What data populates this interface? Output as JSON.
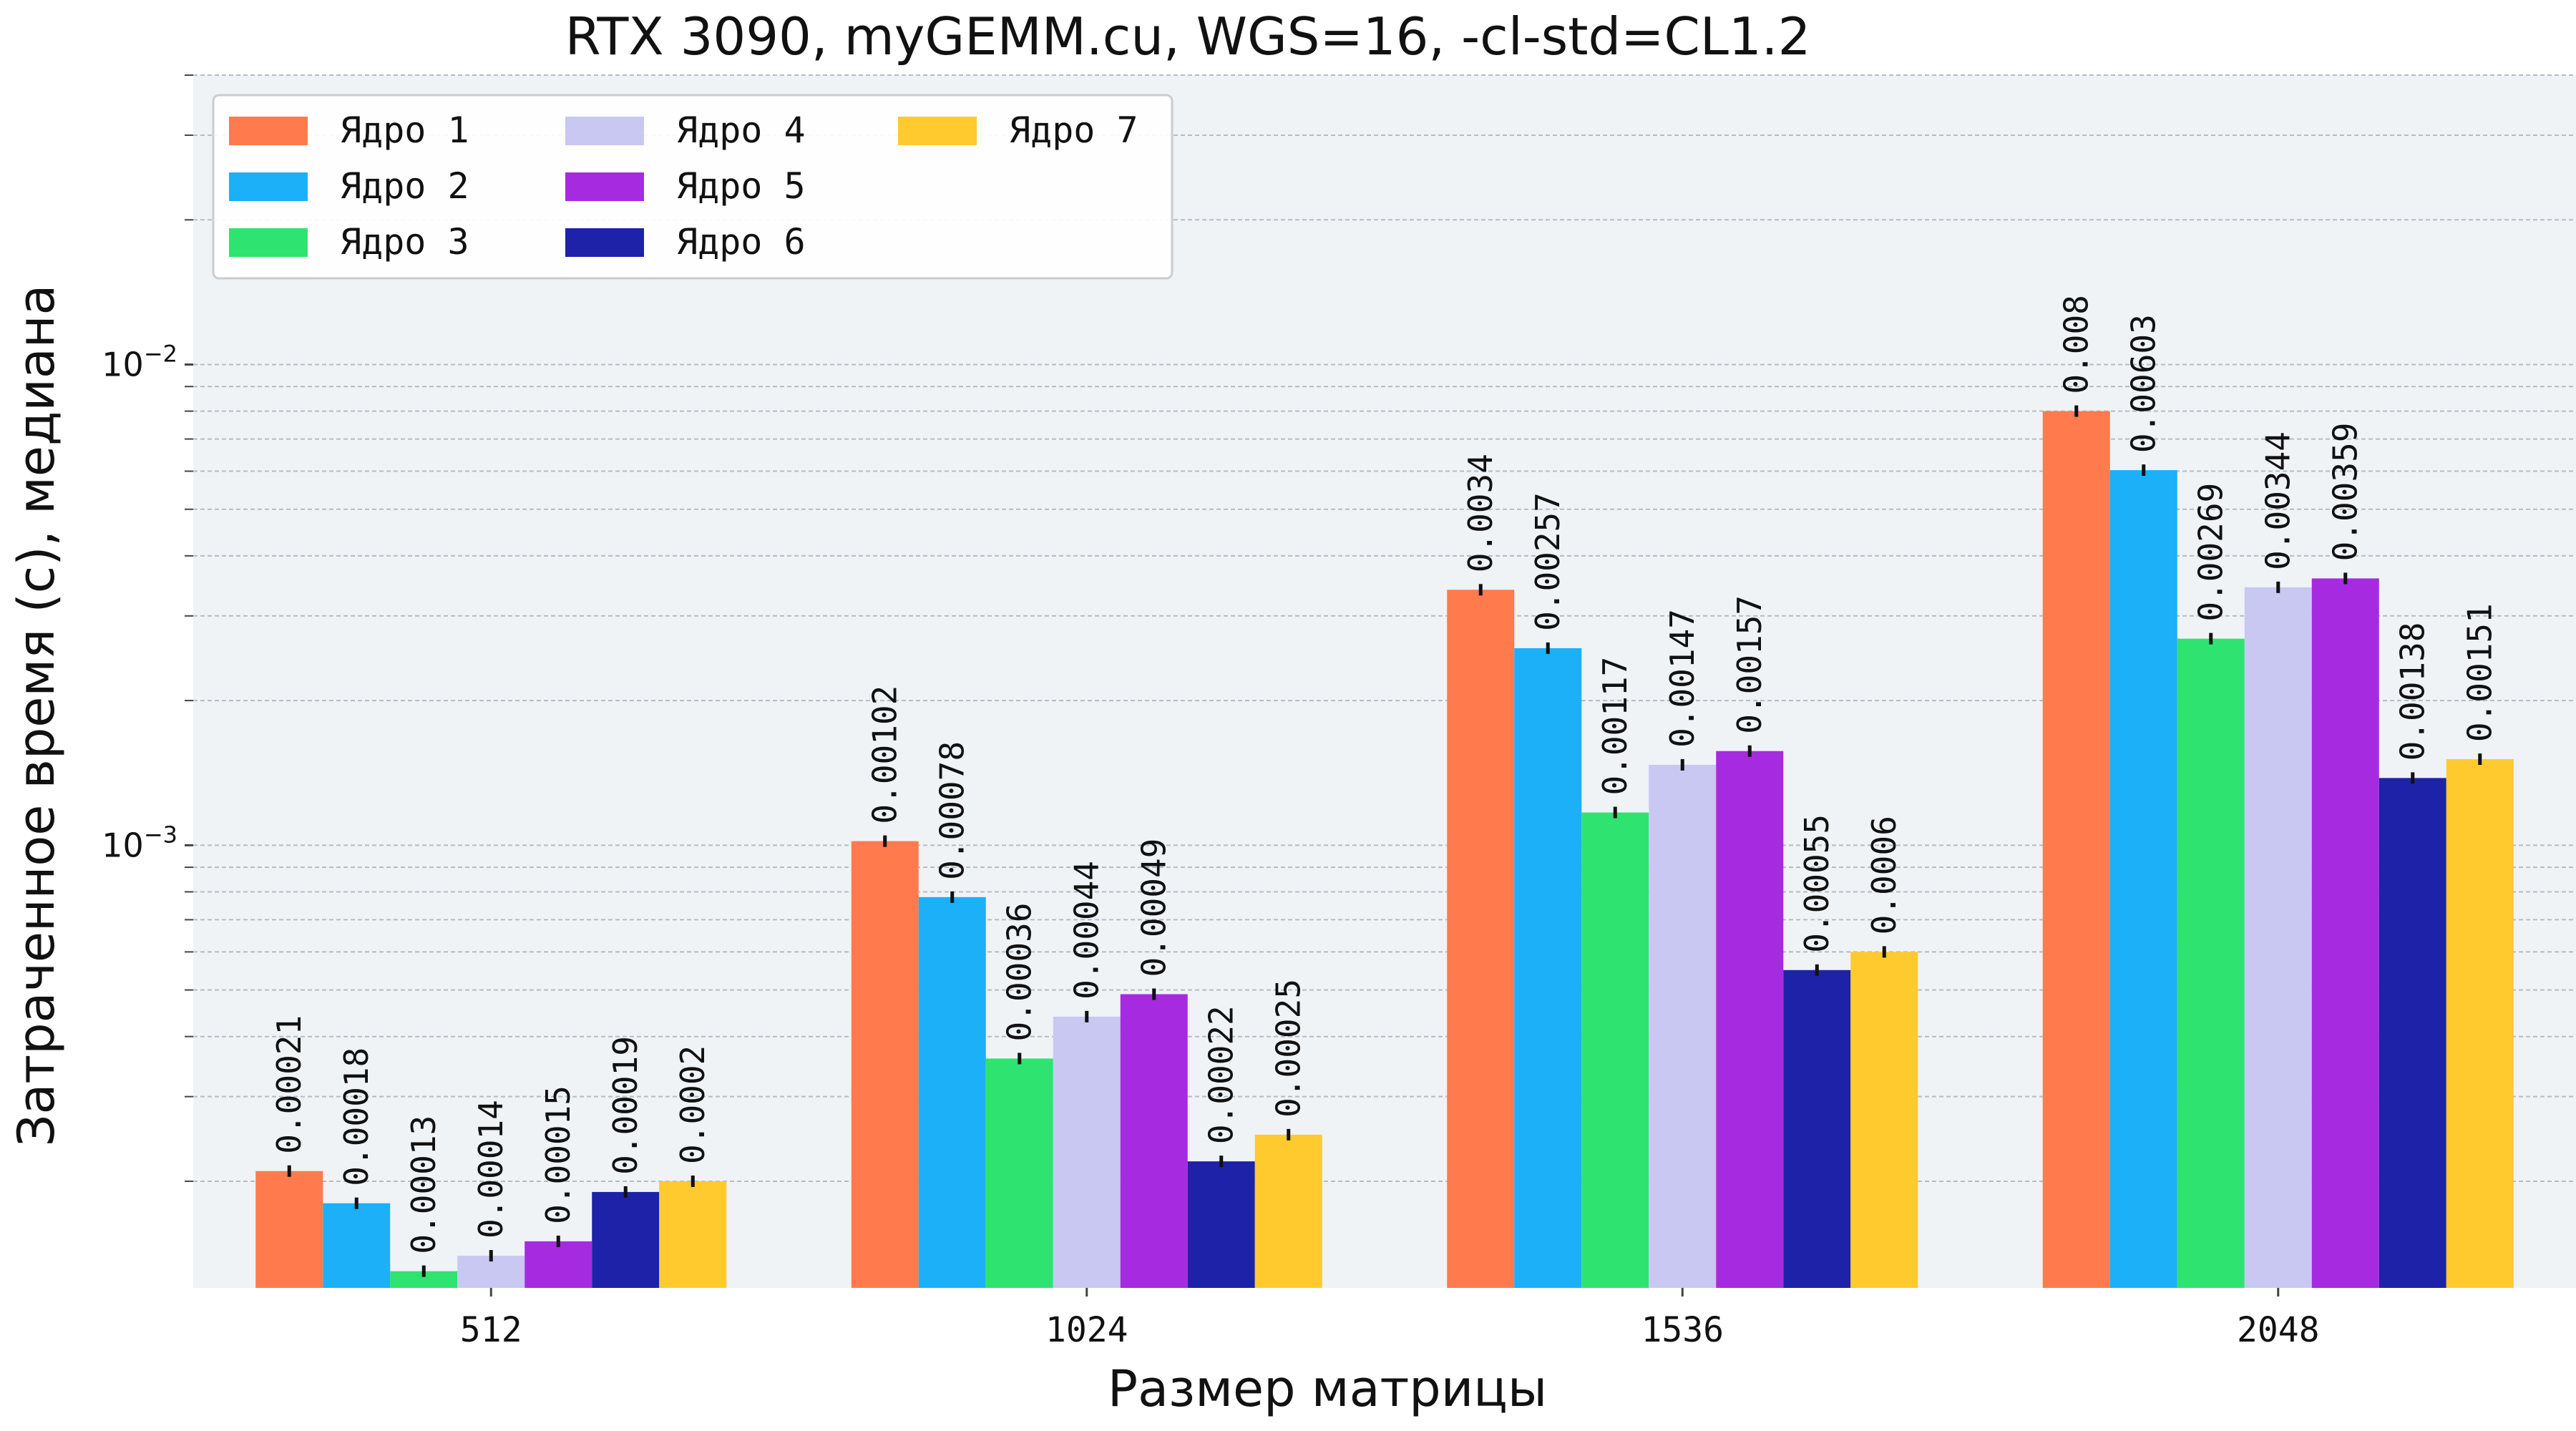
{
  "chart_data": {
    "type": "bar",
    "title": "RTX 3090, myGEMM.cu, WGS=16, -cl-std=CL1.2",
    "xlabel": "Размер матрицы",
    "ylabel": "Затраченное время (с), медиана",
    "yscale": "log",
    "ylim": [
      0.00012,
      0.04
    ],
    "yticks": [
      {
        "base": "10",
        "exp": "-3",
        "value": 0.001
      },
      {
        "base": "10",
        "exp": "-2",
        "value": 0.01
      }
    ],
    "grid": "horizontal",
    "legend_position": "top-left",
    "categories": [
      "512",
      "1024",
      "1536",
      "2048"
    ],
    "series": [
      {
        "name": "Ядро 1",
        "color": "#FF7A4D",
        "values": [
          0.00021,
          0.00102,
          0.0034,
          0.008
        ],
        "labels": [
          "0.00021",
          "0.00102",
          "0.0034",
          "0.008"
        ]
      },
      {
        "name": "Ядро 2",
        "color": "#1BB0F7",
        "values": [
          0.00018,
          0.00078,
          0.00257,
          0.00603
        ],
        "labels": [
          "0.00018",
          "0.00078",
          "0.00257",
          "0.00603"
        ]
      },
      {
        "name": "Ядро 3",
        "color": "#2FE370",
        "values": [
          0.00013,
          0.00036,
          0.00117,
          0.00269
        ],
        "labels": [
          "0.00013",
          "0.00036",
          "0.00117",
          "0.00269"
        ]
      },
      {
        "name": "Ядро 4",
        "color": "#C8C8F2",
        "values": [
          0.00014,
          0.00044,
          0.00147,
          0.00344
        ],
        "labels": [
          "0.00014",
          "0.00044",
          "0.00147",
          "0.00344"
        ]
      },
      {
        "name": "Ядро 5",
        "color": "#A62BE0",
        "values": [
          0.00015,
          0.00049,
          0.00157,
          0.00359
        ],
        "labels": [
          "0.00015",
          "0.00049",
          "0.00157",
          "0.00359"
        ]
      },
      {
        "name": "Ядро 6",
        "color": "#1E22A8",
        "values": [
          0.00019,
          0.00022,
          0.00055,
          0.00138
        ],
        "labels": [
          "0.00019",
          "0.00022",
          "0.00055",
          "0.00138"
        ]
      },
      {
        "name": "Ядро 7",
        "color": "#FFCA2E",
        "values": [
          0.0002,
          0.00025,
          0.0006,
          0.00151
        ],
        "labels": [
          "0.0002",
          "0.00025",
          "0.0006",
          "0.00151"
        ]
      }
    ]
  }
}
